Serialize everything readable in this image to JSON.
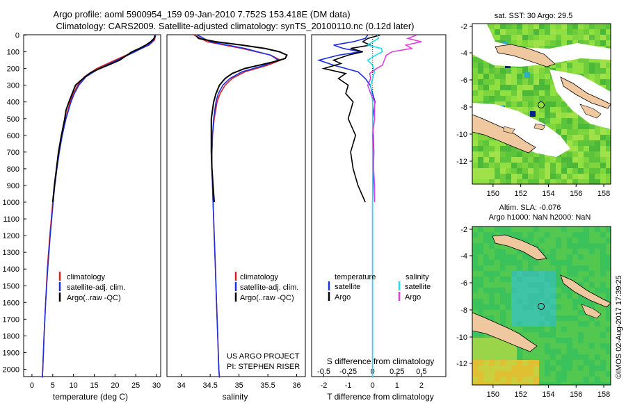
{
  "figure": {
    "title_line1": "Argo profile: aoml 5900954_159 09-Jan-2010 7.752S 153.418E (DM data)",
    "title_line2": "Climatology: CARS2009. Satellite-adjusted climatology: synTS_20100110.nc (0.12d later)",
    "credit": "©IMOS 02-Aug-2017 17:39:25",
    "project_line1": "US ARGO PROJECT",
    "project_line2": "PI: STEPHEN RISER",
    "colors": {
      "climatology": "#e02020",
      "satellite": "#1c2ee0",
      "argo": "#000000",
      "sat_s": "#19e0f0",
      "argo_s": "#e040e0",
      "land": "#f0c8a0"
    }
  },
  "chart_data": [
    {
      "id": "temperature",
      "type": "line",
      "xlabel": "temperature (deg C)",
      "ylabel": "",
      "xlim": [
        -2,
        31
      ],
      "ylim": [
        0,
        2100
      ],
      "xticks": [
        "0",
        "5",
        "10",
        "15",
        "20",
        "25",
        "30"
      ],
      "xtick_values": [
        0,
        5,
        10,
        15,
        20,
        25,
        30
      ],
      "yticks": [
        "0",
        "100",
        "200",
        "300",
        "400",
        "500",
        "600",
        "700",
        "800",
        "900",
        "1000",
        "1100",
        "1200",
        "1300",
        "1400",
        "1500",
        "1600",
        "1700",
        "1800",
        "1900",
        "2000"
      ],
      "ytick_values": [
        0,
        100,
        200,
        300,
        400,
        500,
        600,
        700,
        800,
        900,
        1000,
        1100,
        1200,
        1300,
        1400,
        1500,
        1600,
        1700,
        1800,
        1900,
        2000
      ],
      "legend": [
        "climatology",
        "satellite-adj. clim.",
        "Argo(..raw -QC)"
      ],
      "series": [
        {
          "name": "climatology",
          "depth": [
            0,
            30,
            60,
            100,
            150,
            200,
            250,
            300,
            350,
            400,
            500,
            600,
            700,
            800,
            900,
            1000,
            1200,
            1400,
            1600,
            1800,
            2000,
            2050
          ],
          "values": [
            29.8,
            29.5,
            28.2,
            24.5,
            20.0,
            15.6,
            12.6,
            11.0,
            10.0,
            9.2,
            8.1,
            7.2,
            6.5,
            5.9,
            5.4,
            5.0,
            4.3,
            3.7,
            3.3,
            2.9,
            2.6,
            2.5
          ]
        },
        {
          "name": "satellite-adj. clim.",
          "depth": [
            0,
            30,
            60,
            100,
            150,
            200,
            250,
            300,
            350,
            400,
            500,
            600,
            700,
            800,
            900,
            1000,
            1200,
            1400,
            1600,
            1800,
            2000,
            2050
          ],
          "values": [
            29.6,
            29.3,
            28.0,
            24.8,
            20.5,
            16.2,
            13.0,
            11.3,
            10.2,
            9.4,
            8.2,
            7.3,
            6.6,
            6.0,
            5.5,
            5.1,
            4.4,
            3.8,
            3.3,
            2.9,
            2.6,
            2.5
          ]
        },
        {
          "name": "Argo(..raw -QC)",
          "depth": [
            5,
            20,
            40,
            60,
            80,
            100,
            125,
            150,
            175,
            200,
            225,
            250,
            275,
            300,
            350,
            400,
            450,
            500,
            600,
            700,
            800,
            900,
            1000
          ],
          "values": [
            29.7,
            29.4,
            28.6,
            27.4,
            25.9,
            24.1,
            22.6,
            21.1,
            18.8,
            16.4,
            14.1,
            12.8,
            11.6,
            10.5,
            9.7,
            8.9,
            8.2,
            7.9,
            7.1,
            6.4,
            5.9,
            5.4,
            5.0
          ]
        }
      ]
    },
    {
      "id": "salinity",
      "type": "line",
      "xlabel": "salinity",
      "xlim": [
        33.75,
        36.15
      ],
      "ylim": [
        0,
        2100
      ],
      "xticks": [
        "34",
        "34.5",
        "35",
        "35.5",
        "36"
      ],
      "xtick_values": [
        34,
        34.5,
        35,
        35.5,
        36
      ],
      "legend": [
        "climatology",
        "satellite-adj. clim.",
        "Argo(..raw -QC)"
      ],
      "series": [
        {
          "name": "climatology",
          "depth": [
            0,
            40,
            80,
            120,
            150,
            180,
            220,
            260,
            300,
            350,
            400,
            500,
            600,
            700,
            800,
            900,
            1000,
            1200,
            1400,
            1600,
            1800,
            2000,
            2050
          ],
          "values": [
            34.22,
            34.45,
            35.05,
            35.55,
            35.72,
            35.5,
            35.1,
            34.88,
            34.76,
            34.67,
            34.62,
            34.57,
            34.54,
            34.53,
            34.53,
            34.54,
            34.55,
            34.57,
            34.59,
            34.61,
            34.63,
            34.65,
            34.66
          ]
        },
        {
          "name": "satellite-adj. clim.",
          "depth": [
            0,
            40,
            80,
            120,
            150,
            180,
            220,
            260,
            300,
            350,
            400,
            500,
            600,
            700,
            800,
            900,
            1000,
            1200,
            1400,
            1600,
            1800,
            2000,
            2050
          ],
          "values": [
            34.28,
            34.5,
            35.1,
            35.55,
            35.68,
            35.45,
            35.05,
            34.84,
            34.72,
            34.64,
            34.6,
            34.56,
            34.54,
            34.53,
            34.53,
            34.54,
            34.55,
            34.57,
            34.59,
            34.61,
            34.63,
            34.65,
            34.66
          ]
        },
        {
          "name": "Argo(..raw -QC)",
          "depth": [
            5,
            20,
            40,
            60,
            80,
            100,
            120,
            140,
            160,
            180,
            200,
            230,
            260,
            300,
            350,
            400,
            450,
            500,
            600,
            700,
            800,
            900,
            1000
          ],
          "values": [
            34.26,
            34.3,
            34.6,
            35.05,
            35.45,
            35.7,
            35.83,
            35.8,
            35.6,
            35.35,
            35.1,
            34.88,
            34.76,
            34.66,
            34.6,
            34.56,
            34.54,
            34.52,
            34.52,
            34.52,
            34.53,
            34.55,
            34.57
          ]
        }
      ]
    },
    {
      "id": "difference",
      "type": "line",
      "xlabel_bottom": "T difference from climatology",
      "xlabel_top": "S difference from climatology",
      "xlim": [
        -2.5,
        3.0
      ],
      "ylim": [
        0,
        2100
      ],
      "xticks": [
        "-2",
        "-1",
        "0",
        "1",
        "2"
      ],
      "xtick_values": [
        -2,
        -1,
        0,
        1,
        2
      ],
      "sticks": [
        "-0.5",
        "-0.25",
        "0",
        "0.25",
        "0.5"
      ],
      "stick_values": [
        -0.5,
        -0.25,
        0,
        0.25,
        0.5
      ],
      "legend_temperature": "temperature",
      "legend_salinity": "salinity",
      "legend_items": [
        "satellite",
        "Argo",
        "satellite",
        "Argo"
      ],
      "series": [
        {
          "name": "T satellite",
          "depth": [
            0,
            20,
            40,
            60,
            80,
            100,
            120,
            150,
            180,
            220,
            260,
            300,
            400,
            500,
            700,
            1000,
            1500,
            2050
          ],
          "values": [
            -0.2,
            -0.3,
            -0.8,
            -1.6,
            -1.2,
            -0.5,
            -1.4,
            -2.2,
            -1.6,
            -0.6,
            -0.3,
            -0.1,
            0.1,
            0.0,
            0.05,
            0.0,
            0.0,
            0.0
          ]
        },
        {
          "name": "T Argo",
          "depth": [
            0,
            20,
            40,
            60,
            80,
            100,
            120,
            150,
            170,
            200,
            230,
            260,
            300,
            350,
            400,
            500,
            600,
            700,
            800,
            900,
            1000
          ],
          "values": [
            0.3,
            -0.2,
            -0.4,
            -0.1,
            -0.9,
            -0.4,
            -1.0,
            -1.6,
            -1.3,
            -2.0,
            -1.1,
            -1.4,
            -1.0,
            -1.1,
            -0.8,
            -1.0,
            -0.7,
            -0.9,
            -0.8,
            -0.6,
            -0.3
          ]
        },
        {
          "name": "S satellite",
          "depth": [
            0,
            20,
            40,
            60,
            80,
            100,
            120,
            150,
            180,
            220,
            260,
            300,
            400,
            500,
            700,
            1000,
            1500,
            2050
          ],
          "values": [
            0.05,
            0.06,
            0.0,
            -0.05,
            0.09,
            0.1,
            0.03,
            -0.05,
            0.0,
            0.02,
            0.0,
            -0.02,
            0.0,
            0.0,
            0.0,
            0.0,
            0.0,
            0.0
          ]
        },
        {
          "name": "S Argo",
          "depth": [
            0,
            20,
            40,
            60,
            80,
            100,
            120,
            150,
            180,
            200,
            230,
            260,
            300,
            350,
            400,
            500,
            600,
            700,
            800,
            900,
            1000
          ],
          "values": [
            0.45,
            0.36,
            0.5,
            0.34,
            0.4,
            0.2,
            0.14,
            0.12,
            0.1,
            0.04,
            -0.03,
            -0.02,
            -0.05,
            -0.02,
            0.02,
            0.02,
            0.0,
            0.01,
            0.01,
            0.02,
            0.02
          ]
        }
      ]
    },
    {
      "id": "sst_map",
      "type": "heatmap",
      "title": "sat. SST: 30 Argo: 29.5",
      "xticks": [
        "150",
        "152",
        "154",
        "156",
        "158"
      ],
      "yticks": [
        "-2",
        "-4",
        "-6",
        "-8",
        "-10",
        "-12"
      ],
      "argo_position": {
        "lon": 153.418,
        "lat": -7.752
      }
    },
    {
      "id": "sla_map",
      "type": "heatmap",
      "title_line1": "Altim. SLA: -0.076",
      "title_line2": "Argo h1000: NaN h2000: NaN",
      "xticks": [
        "150",
        "152",
        "154",
        "156",
        "158"
      ],
      "yticks": [
        "-2",
        "-4",
        "-6",
        "-8",
        "-10",
        "-12"
      ],
      "argo_position": {
        "lon": 153.418,
        "lat": -7.752
      }
    }
  ]
}
